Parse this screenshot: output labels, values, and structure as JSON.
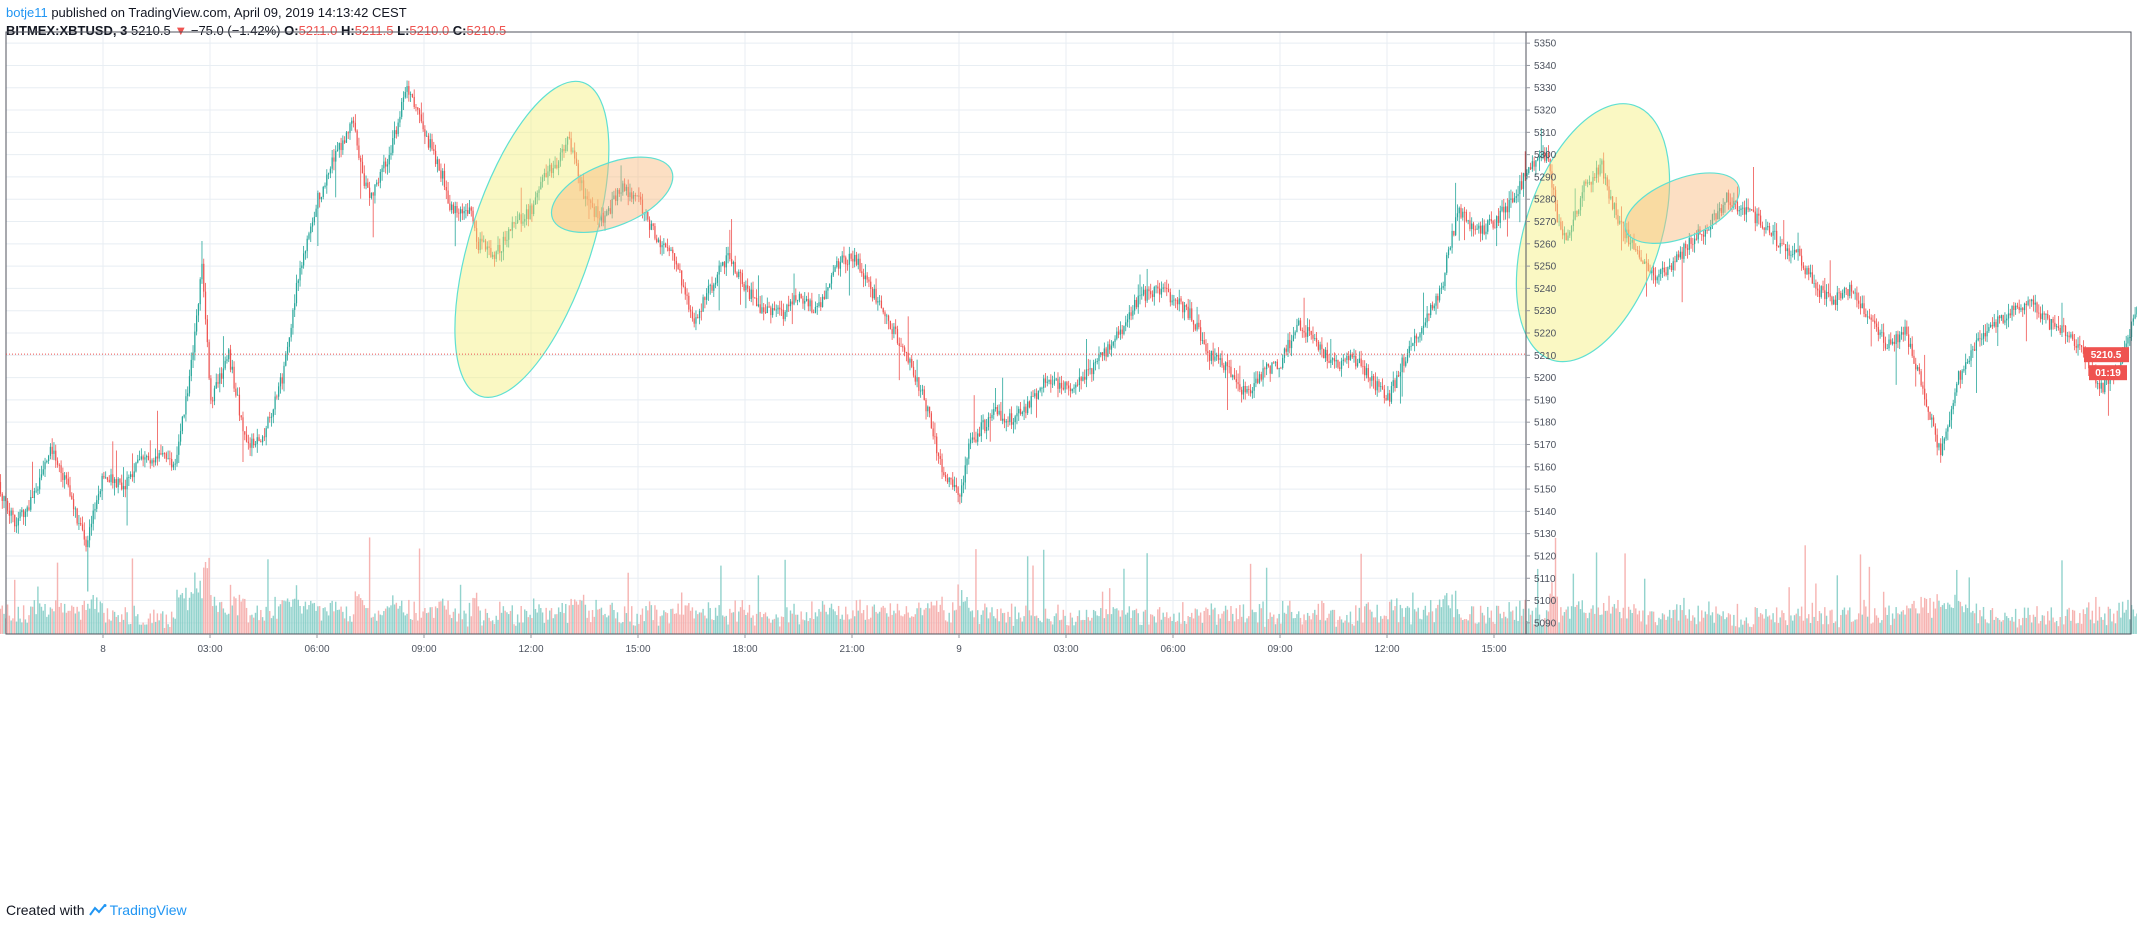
{
  "header": {
    "author": "botje11",
    "published_text": "published on TradingView.com, April 09, 2019 14:13:42 CEST",
    "symbol": "BITMEX:XBTUSD, 3",
    "last": "5210.5",
    "arrow": "▼",
    "change": "−75.0 (−1.42%)",
    "o_label": "O:",
    "o_value": "5211.0",
    "h_label": "H:",
    "h_value": "5211.5",
    "l_label": "L:",
    "l_value": "5210.0",
    "c_label": "C:",
    "c_value": "5210.5"
  },
  "price_tag": {
    "value": "5210.5",
    "countdown": "01:19"
  },
  "footer": {
    "created_with": "Created with",
    "brand": "TradingView"
  },
  "colors": {
    "up": "#26a69a",
    "down": "#ef5350",
    "up_volume": "#80cbc4",
    "down_volume": "#f4a7a5",
    "grid": "#e8eef3",
    "axis_text": "#4c525e",
    "ellipse_yellow": "#f5f07a",
    "ellipse_orange": "#f8b77a",
    "ellipse_stroke": "#5fe0d2"
  },
  "chart_data": {
    "type": "candlestick",
    "instrument": "BITMEX:XBTUSD",
    "timeframe": "3",
    "ylim": [
      5085,
      5355
    ],
    "y_ticks": [
      5090,
      5100,
      5110,
      5120,
      5130,
      5140,
      5150,
      5160,
      5170,
      5180,
      5190,
      5200,
      5210,
      5220,
      5230,
      5240,
      5250,
      5260,
      5270,
      5280,
      5290,
      5300,
      5310,
      5320,
      5330,
      5340,
      5350
    ],
    "x_ticks": [
      "8",
      "03:00",
      "06:00",
      "09:00",
      "12:00",
      "15:00",
      "18:00",
      "21:00",
      "9",
      "03:00",
      "06:00",
      "09:00",
      "12:00",
      "15:00"
    ],
    "bars_per_tick": 60,
    "last_price_line": 5210.5,
    "price_path_anchors": [
      [
        0,
        5152
      ],
      [
        10,
        5135
      ],
      [
        20,
        5145
      ],
      [
        30,
        5170
      ],
      [
        40,
        5150
      ],
      [
        50,
        5125
      ],
      [
        60,
        5158
      ],
      [
        70,
        5150
      ],
      [
        80,
        5162
      ],
      [
        90,
        5165
      ],
      [
        100,
        5162
      ],
      [
        110,
        5210
      ],
      [
        115,
        5250
      ],
      [
        120,
        5190
      ],
      [
        130,
        5210
      ],
      [
        140,
        5170
      ],
      [
        150,
        5175
      ],
      [
        160,
        5200
      ],
      [
        170,
        5250
      ],
      [
        180,
        5280
      ],
      [
        190,
        5300
      ],
      [
        200,
        5315
      ],
      [
        205,
        5290
      ],
      [
        210,
        5280
      ],
      [
        220,
        5300
      ],
      [
        230,
        5330
      ],
      [
        240,
        5310
      ],
      [
        250,
        5290
      ],
      [
        255,
        5275
      ],
      [
        265,
        5275
      ],
      [
        270,
        5260
      ],
      [
        280,
        5255
      ],
      [
        290,
        5270
      ],
      [
        300,
        5275
      ],
      [
        305,
        5290
      ],
      [
        315,
        5295
      ],
      [
        320,
        5310
      ],
      [
        330,
        5280
      ],
      [
        335,
        5275
      ],
      [
        340,
        5270
      ],
      [
        350,
        5285
      ],
      [
        360,
        5280
      ],
      [
        370,
        5262
      ],
      [
        380,
        5255
      ],
      [
        390,
        5225
      ],
      [
        400,
        5240
      ],
      [
        410,
        5255
      ],
      [
        420,
        5240
      ],
      [
        430,
        5230
      ],
      [
        440,
        5228
      ],
      [
        450,
        5237
      ],
      [
        460,
        5230
      ],
      [
        470,
        5250
      ],
      [
        480,
        5255
      ],
      [
        490,
        5240
      ],
      [
        500,
        5225
      ],
      [
        510,
        5210
      ],
      [
        520,
        5190
      ],
      [
        530,
        5160
      ],
      [
        540,
        5145
      ],
      [
        545,
        5170
      ],
      [
        550,
        5175
      ],
      [
        560,
        5185
      ],
      [
        570,
        5180
      ],
      [
        580,
        5190
      ],
      [
        590,
        5200
      ],
      [
        600,
        5195
      ],
      [
        610,
        5200
      ],
      [
        620,
        5210
      ],
      [
        630,
        5220
      ],
      [
        640,
        5235
      ],
      [
        650,
        5240
      ],
      [
        660,
        5235
      ],
      [
        670,
        5228
      ],
      [
        680,
        5210
      ],
      [
        690,
        5205
      ],
      [
        700,
        5192
      ],
      [
        710,
        5203
      ],
      [
        720,
        5207
      ],
      [
        730,
        5225
      ],
      [
        740,
        5215
      ],
      [
        750,
        5205
      ],
      [
        760,
        5210
      ],
      [
        770,
        5200
      ],
      [
        780,
        5190
      ],
      [
        790,
        5210
      ],
      [
        800,
        5225
      ],
      [
        810,
        5240
      ],
      [
        815,
        5260
      ],
      [
        820,
        5275
      ],
      [
        830,
        5265
      ],
      [
        840,
        5270
      ],
      [
        850,
        5280
      ],
      [
        860,
        5295
      ],
      [
        870,
        5300
      ],
      [
        875,
        5270
      ],
      [
        880,
        5260
      ],
      [
        890,
        5285
      ],
      [
        900,
        5295
      ],
      [
        905,
        5280
      ],
      [
        910,
        5270
      ],
      [
        920,
        5255
      ],
      [
        930,
        5245
      ],
      [
        940,
        5250
      ],
      [
        950,
        5262
      ],
      [
        960,
        5268
      ],
      [
        970,
        5280
      ],
      [
        980,
        5275
      ],
      [
        990,
        5270
      ],
      [
        1000,
        5260
      ],
      [
        1010,
        5255
      ],
      [
        1020,
        5240
      ],
      [
        1030,
        5235
      ],
      [
        1040,
        5240
      ],
      [
        1050,
        5225
      ],
      [
        1060,
        5215
      ],
      [
        1070,
        5220
      ],
      [
        1080,
        5195
      ],
      [
        1090,
        5165
      ],
      [
        1095,
        5180
      ],
      [
        1100,
        5200
      ],
      [
        1110,
        5215
      ],
      [
        1120,
        5225
      ],
      [
        1130,
        5230
      ],
      [
        1140,
        5235
      ],
      [
        1150,
        5225
      ],
      [
        1160,
        5220
      ],
      [
        1170,
        5210
      ],
      [
        1180,
        5195
      ],
      [
        1190,
        5205
      ],
      [
        1200,
        5230
      ],
      [
        1210,
        5225
      ],
      [
        1220,
        5205
      ],
      [
        1230,
        5190
      ],
      [
        1240,
        5180
      ],
      [
        1250,
        5160
      ],
      [
        1255,
        5155
      ],
      [
        1260,
        5172
      ],
      [
        1270,
        5180
      ],
      [
        1280,
        5200
      ],
      [
        1290,
        5210
      ],
      [
        1300,
        5212
      ],
      [
        1310,
        5210
      ]
    ],
    "annotations": [
      {
        "shape": "ellipse",
        "fill": "yellow",
        "cx_bar": 300,
        "cy_price": 5262,
        "rx_bars": 34,
        "ry_price": 74,
        "rotation": 18
      },
      {
        "shape": "ellipse",
        "fill": "orange",
        "cx_bar": 345,
        "cy_price": 5282,
        "rx_bars": 36,
        "ry_price": 14,
        "rotation": -22
      },
      {
        "shape": "ellipse",
        "fill": "yellow",
        "cx_bar": 895,
        "cy_price": 5265,
        "rx_bars": 38,
        "ry_price": 60,
        "rotation": 18
      },
      {
        "shape": "ellipse",
        "fill": "orange",
        "cx_bar": 945,
        "cy_price": 5276,
        "rx_bars": 34,
        "ry_price": 13,
        "rotation": -22
      }
    ]
  }
}
